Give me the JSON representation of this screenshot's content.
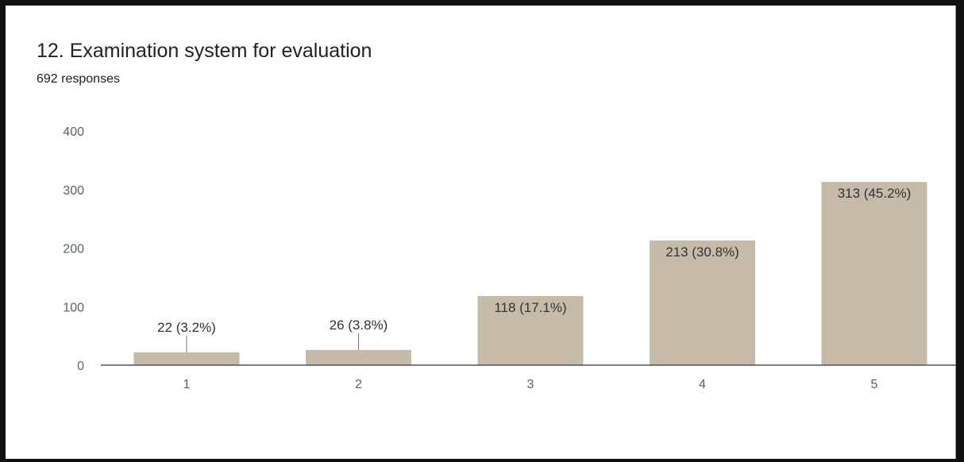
{
  "header": {
    "title": "12. Examination system for evaluation",
    "responses": "692 responses"
  },
  "colors": {
    "bar": "#c6bba8",
    "axis": "#555555",
    "leader": "#777777",
    "text": "#222222",
    "tick": "#5f6368"
  },
  "chart_data": {
    "type": "bar",
    "title": "12. Examination system for evaluation",
    "subtitle": "692 responses",
    "xlabel": "",
    "ylabel": "",
    "categories": [
      "1",
      "2",
      "3",
      "4",
      "5"
    ],
    "values": [
      22,
      26,
      118,
      213,
      313
    ],
    "data_labels": [
      "22 (3.2%)",
      "26 (3.8%)",
      "118 (17.1%)",
      "213 (30.8%)",
      "313 (45.2%)"
    ],
    "ylim": [
      0,
      400
    ],
    "yticks": [
      0,
      100,
      200,
      300,
      400
    ],
    "grid": false,
    "legend": "none"
  }
}
